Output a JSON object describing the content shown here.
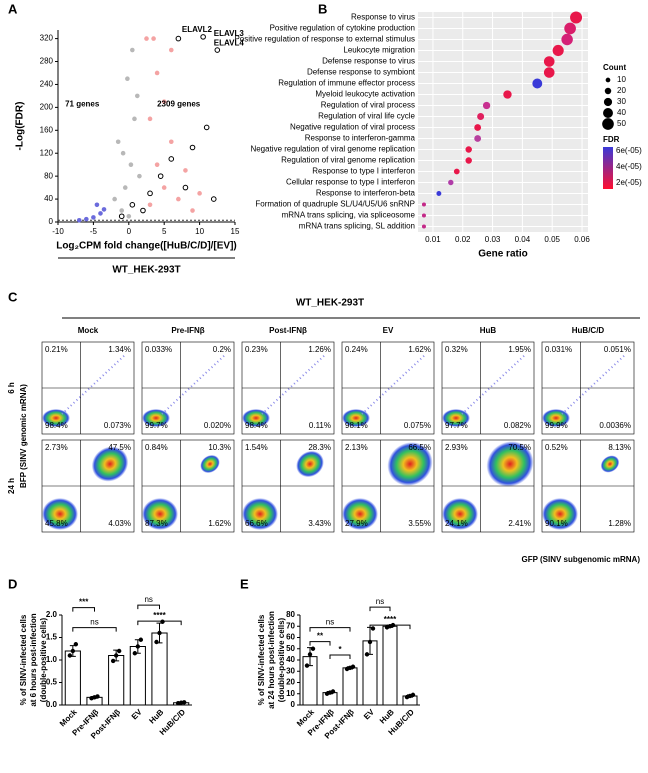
{
  "panels": [
    "A",
    "B",
    "C",
    "D",
    "E"
  ],
  "chart_data": [
    {
      "type": "scatter",
      "xlabel": "Log₂CPM fold change([HuB/C/D]/[EV])",
      "ylabel": "-Log(FDR)",
      "subtitle": "WT_HEK-293T",
      "xlim": [
        -10,
        15
      ],
      "ylim": [
        0,
        335
      ],
      "xticks": [
        -10,
        -5,
        0,
        5,
        10,
        15
      ],
      "yticks": [
        0,
        40,
        80,
        120,
        160,
        200,
        240,
        280,
        320
      ],
      "annotations": [
        "71 genes",
        "2309 genes",
        "ELAVL2",
        "ELAVL3",
        "ELAVL4"
      ],
      "series": [
        {
          "color": "#b8b8b8",
          "x": [
            -1,
            -0.5,
            0.3,
            -1.5,
            0.8,
            -0.2,
            0.5,
            1.2,
            -2,
            0,
            1.5,
            -0.8
          ],
          "y": [
            20,
            60,
            100,
            140,
            180,
            250,
            300,
            220,
            40,
            10,
            80,
            120
          ]
        },
        {
          "color": "#6b6bdc",
          "x": [
            -5,
            -4,
            -6,
            -3.5,
            -7,
            -4.5
          ],
          "y": [
            8,
            15,
            5,
            22,
            3,
            30
          ]
        },
        {
          "color": "#f4a3a3",
          "x": [
            3,
            5,
            4,
            6,
            8,
            3,
            7,
            9,
            5,
            4,
            10,
            6,
            2.5,
            3.5
          ],
          "y": [
            30,
            60,
            100,
            140,
            90,
            180,
            40,
            20,
            210,
            260,
            50,
            300,
            320,
            320
          ]
        },
        {
          "color": "#000000",
          "x": [
            2,
            3,
            4.5,
            6,
            8,
            11,
            12,
            9,
            10.5,
            12.5,
            7,
            -1,
            0.5
          ],
          "y": [
            20,
            50,
            80,
            110,
            60,
            165,
            40,
            130,
            323,
            300,
            320,
            10,
            30
          ]
        }
      ]
    },
    {
      "type": "dot",
      "xlabel": "Gene ratio",
      "xlim": [
        0.005,
        0.062
      ],
      "xticks": [
        0.01,
        0.02,
        0.03,
        0.04,
        0.05,
        0.06
      ],
      "categories": [
        "Response to virus",
        "Positive regulation of cytokine production",
        "Positive regulation of response to external stimulus",
        "Leukocyte migration",
        "Defense response to virus",
        "Defense response to symbiont",
        "Regulation of immune effector process",
        "Myeloid leukocyte activation",
        "Regulation of viral process",
        "Regulation of viral life cycle",
        "Negative regulation of viral process",
        "Response to interferon-gamma",
        "Negative regulation of viral genome replication",
        "Regulation of viral genome replication",
        "Response to type I interferon",
        "Cellular response to type I interferon",
        "Response to interferon-beta",
        "Formation of quadruple SL/U4/U5/U6 snRNP",
        "mRNA trans splicing, via spliceosome",
        "mRNA trans splicing, SL addition"
      ],
      "values": [
        0.058,
        0.056,
        0.055,
        0.052,
        0.049,
        0.049,
        0.045,
        0.035,
        0.028,
        0.026,
        0.025,
        0.025,
        0.022,
        0.022,
        0.018,
        0.016,
        0.012,
        0.007,
        0.007,
        0.007
      ],
      "counts": [
        52,
        50,
        49,
        47,
        44,
        44,
        40,
        31,
        25,
        23,
        22,
        22,
        20,
        20,
        16,
        14,
        11,
        6,
        6,
        6
      ],
      "colors": [
        "#e8174a",
        "#d91e6a",
        "#d42076",
        "#e8174a",
        "#e8174a",
        "#e8174a",
        "#3a3ad8",
        "#e8174a",
        "#c83090",
        "#e0205e",
        "#e8174a",
        "#b8409e",
        "#e8174a",
        "#e8174a",
        "#e8174a",
        "#b03ca8",
        "#3a3ad8",
        "#c42a88",
        "#c42a88",
        "#c42a88"
      ],
      "size_title": "Count",
      "size_legend": [
        10,
        20,
        30,
        40,
        50
      ],
      "color_title": "FDR",
      "color_legend": [
        "6e(-05)",
        "4e(-05)",
        "2e(-05)"
      ]
    },
    {
      "type": "bar",
      "ylabel": [
        "% of SINV-infected cells",
        "at 6 hours post-infection",
        "(double-positive cells)"
      ],
      "categories": [
        "Mock",
        "Pre-IFNβ",
        "Post-IFNβ",
        "EV",
        "HuB",
        "HuB/C/D"
      ],
      "values": [
        1.2,
        0.17,
        1.1,
        1.3,
        1.6,
        0.05
      ],
      "errors": [
        0.12,
        0.02,
        0.12,
        0.15,
        0.22,
        0.01
      ],
      "points": [
        [
          1.1,
          1.2,
          1.35
        ],
        [
          0.15,
          0.17,
          0.19
        ],
        [
          0.98,
          1.1,
          1.2
        ],
        [
          1.15,
          1.3,
          1.45
        ],
        [
          1.4,
          1.6,
          1.85
        ],
        [
          0.04,
          0.05,
          0.06
        ]
      ],
      "ylim": [
        0,
        2
      ],
      "yticks": [
        {
          "value": 0,
          "label": "0.0"
        },
        {
          "value": 0.5,
          "label": "0.5"
        },
        {
          "value": 1,
          "label": "1.0"
        },
        {
          "value": 1.5,
          "label": "1.5"
        },
        {
          "value": 2,
          "label": "2.0"
        }
      ],
      "annotations": [
        "ns",
        "***",
        "ns",
        "****"
      ]
    },
    {
      "type": "bar",
      "ylabel": [
        "% of SINV-infected cells",
        "at 24 hours post-infection",
        "(double-positive cells)"
      ],
      "categories": [
        "Mock",
        "Pre-IFNβ",
        "Post-IFNβ",
        "EV",
        "HuB",
        "HuB/C/D"
      ],
      "values": [
        43,
        11,
        33,
        57,
        70,
        8
      ],
      "errors": [
        8,
        1,
        1,
        12,
        1,
        1
      ],
      "points": [
        [
          35,
          45,
          50
        ],
        [
          10,
          11,
          12
        ],
        [
          32,
          33,
          34
        ],
        [
          45,
          56,
          68
        ],
        [
          69,
          70,
          71
        ],
        [
          7,
          8,
          9
        ]
      ],
      "ylim": [
        0,
        80
      ],
      "yticks": [
        0,
        10,
        20,
        30,
        40,
        50,
        60,
        70,
        80
      ],
      "annotations": [
        "ns",
        "**",
        "*",
        "ns",
        "****"
      ]
    }
  ],
  "flow": {
    "title": "WT_HEK-293T",
    "xlabel": "GFP (SINV subgenomic mRNA)",
    "ylabel": "BFP (SINV genomic mRNA)",
    "columns": [
      "Mock",
      "Pre-IFNβ",
      "Post-IFNβ",
      "EV",
      "HuB",
      "HuB/C/D"
    ],
    "rows": [
      {
        "label": "6 h",
        "panels": [
          [
            "0.21%",
            "1.34%",
            "98.4%",
            "0.073%"
          ],
          [
            "0.033%",
            "0.2%",
            "99.7%",
            "0.020%"
          ],
          [
            "0.23%",
            "1.26%",
            "98.4%",
            "0.11%"
          ],
          [
            "0.24%",
            "1.62%",
            "98.1%",
            "0.075%"
          ],
          [
            "0.32%",
            "1.95%",
            "97.7%",
            "0.082%"
          ],
          [
            "0.031%",
            "0.051%",
            "99.9%",
            "0.0036%"
          ]
        ]
      },
      {
        "label": "24 h",
        "panels": [
          [
            "2.73%",
            "47.5%",
            "45.8%",
            "4.03%"
          ],
          [
            "0.84%",
            "10.3%",
            "87.3%",
            "1.62%"
          ],
          [
            "1.54%",
            "28.3%",
            "66.6%",
            "3.43%"
          ],
          [
            "2.13%",
            "66.5%",
            "27.9%",
            "3.55%"
          ],
          [
            "2.93%",
            "70.5%",
            "24.1%",
            "2.41%"
          ],
          [
            "0.52%",
            "8.13%",
            "90.1%",
            "1.28%"
          ]
        ]
      }
    ]
  }
}
